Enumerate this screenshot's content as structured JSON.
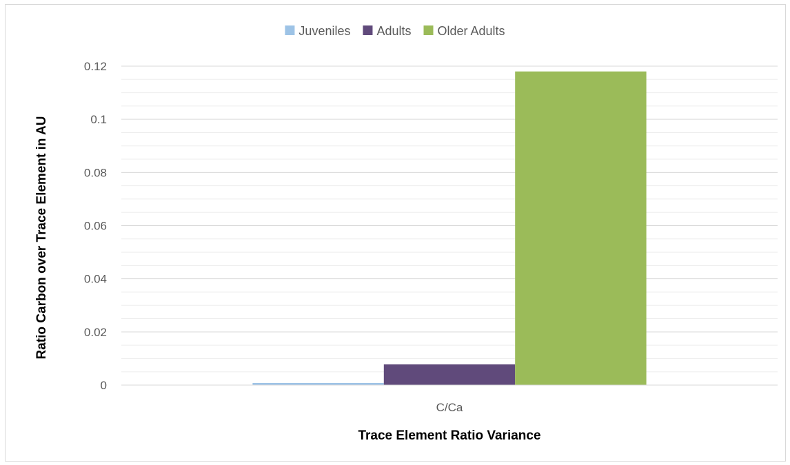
{
  "chart_data": {
    "type": "bar",
    "categories": [
      "C/Ca"
    ],
    "series": [
      {
        "name": "Juveniles",
        "values": [
          0.0008
        ],
        "color": "#9dc3e6"
      },
      {
        "name": "Adults",
        "values": [
          0.0078
        ],
        "color": "#604a7b"
      },
      {
        "name": "Older Adults",
        "values": [
          0.118
        ],
        "color": "#9bbb59"
      }
    ],
    "title": "",
    "xlabel": "Trace Element Ratio Variance",
    "ylabel": "Ratio Carbon over Trace Element in AU",
    "ylim": [
      0,
      0.12
    ],
    "yticks": [
      "0",
      "0.02",
      "0.04",
      "0.06",
      "0.08",
      "0.1",
      "0.12"
    ],
    "grid": "major and minor horizontal",
    "legend": "top"
  }
}
